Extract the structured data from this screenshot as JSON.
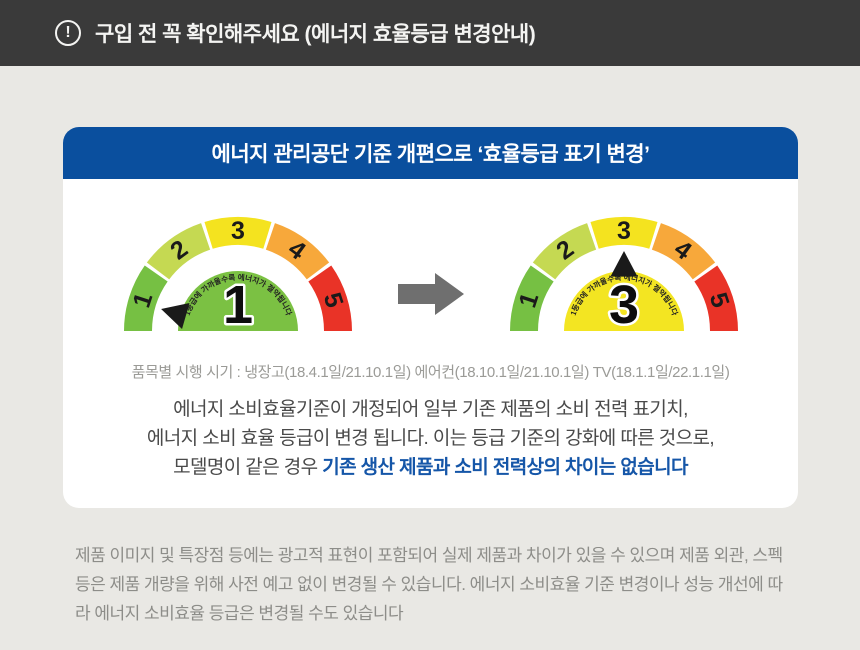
{
  "notice_bar": {
    "icon": "exclamation-circle",
    "icon_glyph": "!",
    "title": "구입 전 꼭 확인해주세요 (에너지 효율등급 변경안내)"
  },
  "card": {
    "header_title": "에너지 관리공단 기준 개편으로 ‘효율등급 표기 변경’",
    "gauge_scale": [
      {
        "label": "1",
        "color": "#76c043"
      },
      {
        "label": "2",
        "color": "#c5d952"
      },
      {
        "label": "3",
        "color": "#f4e31f"
      },
      {
        "label": "4",
        "color": "#f7a83b"
      },
      {
        "label": "5",
        "color": "#e93327"
      }
    ],
    "gauges": [
      {
        "name": "before",
        "value": "1",
        "inner_color": "#7bc143",
        "pointer_angle_deg": 164,
        "caption": "1등급에 가까울수록 에너지가 절약됩니다"
      },
      {
        "name": "after",
        "value": "3",
        "inner_color": "#f3e522",
        "pointer_angle_deg": 90,
        "caption": "1등급에 가까울수록 에너지가 절약됩니다"
      }
    ],
    "change_arrow": {
      "icon": "right-block-arrow",
      "color": "#6f6f6f"
    },
    "schedule_note": "품목별 시행 시기 : 냉장고(18.4.1일/21.10.1일) 에어컨(18.10.1일/21.10.1일) TV(18.1.1일/22.1.1일)",
    "body": {
      "line1": "에너지 소비효율기준이 개정되어 일부 기존 제품의 소비 전력 표기치,",
      "line2": "에너지 소비 효율 등급이 변경 됩니다. 이는 등급 기준의 강화에 따른 것으로,",
      "line3_prefix": "모델명이 같은 경우 ",
      "line3_highlight": "기존 생산 제품과 소비 전력상의 차이는 없습니다"
    }
  },
  "footer_note": "제품 이미지 및 특장점 등에는 광고적 표현이 포함되어 실제 제품과 차이가 있을 수 있으며 제품 외관, 스펙 등은 제품 개량을 위해 사전 예고 없이 변경될 수 있습니다.  에너지 소비효율 기준 변경이나 성능 개선에 따라 에너지 소비효율 등급은 변경될 수도 있습니다",
  "colors": {
    "top_bar_bg": "#3a3a3a",
    "page_bg": "#e9e8e4",
    "card_bg": "#ffffff",
    "header_blue": "#0a4f9e",
    "highlight_blue": "#1556a8",
    "footer_gray": "#8d8d89",
    "pointer_black": "#1a1a1a",
    "arrow_gray": "#6f6f6f"
  }
}
